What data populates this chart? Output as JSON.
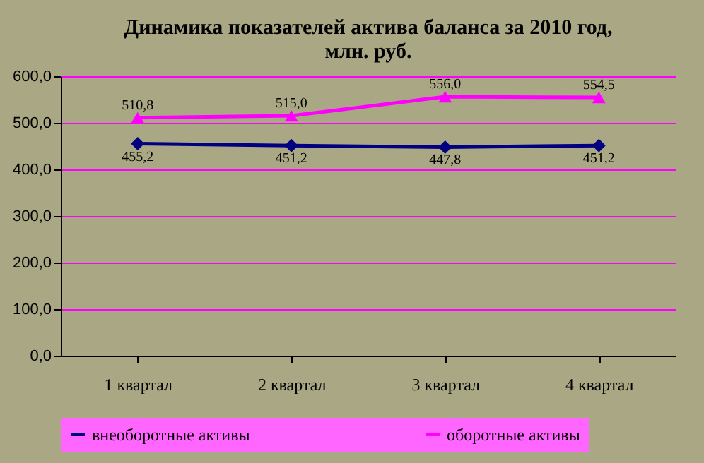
{
  "chart_data": {
    "type": "line",
    "title": [
      "Динамика показателей актива баланса за 2010 год,",
      "млн. руб."
    ],
    "categories": [
      "1 квартал",
      "2 квартал",
      "3 квартал",
      "4 квартал"
    ],
    "series": [
      {
        "name": "внеоборотные активы",
        "color": "#000080",
        "marker": "diamond",
        "values": [
          455.2,
          451.2,
          447.8,
          451.2
        ],
        "value_labels": [
          "455,2",
          "451,2",
          "447,8",
          "451,2"
        ]
      },
      {
        "name": "оборотные активы",
        "color": "#ff00ff",
        "marker": "triangle",
        "values": [
          510.8,
          515.0,
          556.0,
          554.5
        ],
        "value_labels": [
          "510,8",
          "515,0",
          "556,0",
          "554,5"
        ]
      }
    ],
    "ylim": [
      0,
      600
    ],
    "yticks": [
      {
        "value": 0,
        "label": "0,0"
      },
      {
        "value": 100,
        "label": "100,0"
      },
      {
        "value": 200,
        "label": "200,0"
      },
      {
        "value": 300,
        "label": "300,0"
      },
      {
        "value": 400,
        "label": "400,0"
      },
      {
        "value": 500,
        "label": "500,0"
      },
      {
        "value": 600,
        "label": "600,0"
      }
    ],
    "grid": "y",
    "legend": "bottom"
  }
}
